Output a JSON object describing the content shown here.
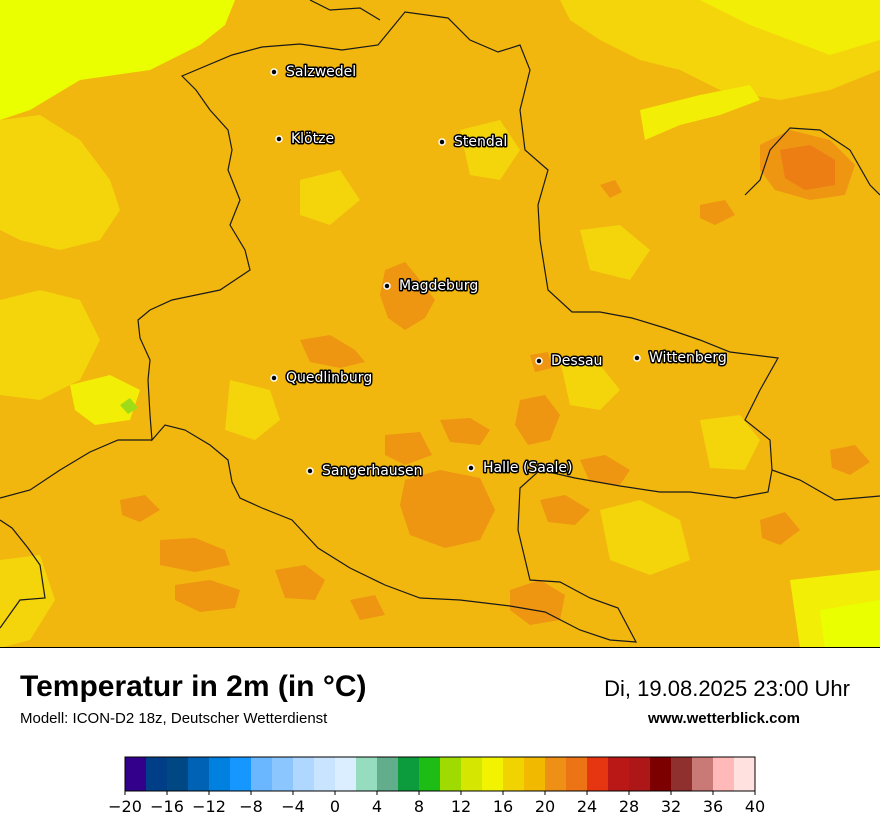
{
  "map": {
    "colors": {
      "base": "#F2B70E",
      "warm_patch": "#EE9512",
      "hot_patch": "#EC7E14",
      "cool_patch": "#F4D40A",
      "cooler_patch": "#F2EE06",
      "coolest_patch": "#EAFF00",
      "green_patch": "#9FDC18",
      "border": "#1a1a1a"
    },
    "cities": [
      {
        "name": "Salzwedel"
      },
      {
        "name": "Klötze"
      },
      {
        "name": "Stendal"
      },
      {
        "name": "Magdeburg"
      },
      {
        "name": "Dessau"
      },
      {
        "name": "Wittenberg"
      },
      {
        "name": "Quedlinburg"
      },
      {
        "name": "Sangerhausen"
      },
      {
        "name": "Halle (Saale)"
      }
    ]
  },
  "header": {
    "title": "Temperatur in 2m (in °C)",
    "subtitle": "Modell: ICON-D2 18z, Deutscher Wetterdienst",
    "datetime": "Di, 19.08.2025 23:00 Uhr",
    "website": "www.wetterblick.com"
  },
  "scale": {
    "tick_labels": [
      "−20",
      "−16",
      "−12",
      "−8",
      "−4",
      "0",
      "4",
      "8",
      "12",
      "16",
      "20",
      "24",
      "28",
      "32",
      "36",
      "40"
    ],
    "colors": [
      "#33008C",
      "#003F88",
      "#004883",
      "#0062B5",
      "#0081E0",
      "#1597FF",
      "#6BB7FF",
      "#8CC6FF",
      "#AFD7FF",
      "#C8E4FF",
      "#DAEEFF",
      "#96DCBE",
      "#62AE8C",
      "#0C9C3E",
      "#1EBD16",
      "#9FDB00",
      "#D5E700",
      "#F2F300",
      "#F0D300",
      "#F1B900",
      "#EE8F16",
      "#ED7414",
      "#E53611",
      "#BA1717",
      "#AD1718",
      "#7D0000",
      "#90302E",
      "#C97A77",
      "#FFB9B8",
      "#FFE1E0"
    ]
  }
}
